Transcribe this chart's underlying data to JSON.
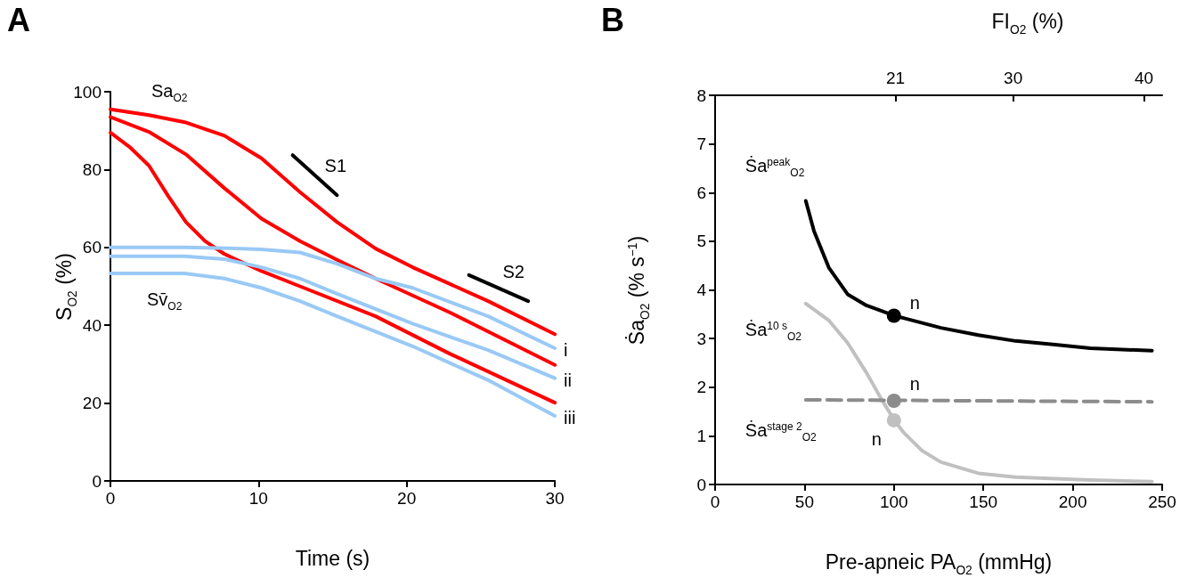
{
  "chart_data": [
    {
      "type": "line",
      "title": "A",
      "xlabel": "Time (s)",
      "ylabel": "S$_{O2}$ (%)",
      "xlim": [
        0,
        30
      ],
      "xticks": [
        0,
        10,
        20,
        30
      ],
      "ylim": [
        0,
        100
      ],
      "yticks": [
        0,
        20,
        40,
        60,
        80,
        100
      ],
      "grid": false,
      "legend": false,
      "marker": "none",
      "line_style": "solid",
      "series": [
        {
          "name": "Sa$_{O2}$",
          "color": "#ff0000",
          "x": [
            0,
            2.6,
            5.1,
            7.7,
            10.2,
            12.8,
            15.3,
            17.9,
            20.4,
            25.5,
            30
          ],
          "values": [
            95.5,
            94,
            92.1,
            88.7,
            82.9,
            74.2,
            66.5,
            59.7,
            54.9,
            46.2,
            37.7
          ]
        },
        {
          "color": "#ff0000",
          "x": [
            0,
            2.6,
            5.1,
            7.7,
            10.2,
            12.8,
            15.3,
            17.9,
            22.9,
            30
          ],
          "values": [
            93.5,
            89.7,
            83.9,
            75.2,
            67.4,
            61.6,
            56.8,
            52,
            43.3,
            29.8
          ]
        },
        {
          "color": "#ff0000",
          "x": [
            0,
            1.3,
            2.6,
            3.9,
            5.1,
            6.4,
            7.7,
            10.2,
            12.8,
            17.9,
            22.9,
            30
          ],
          "values": [
            89.5,
            85.8,
            81,
            73.2,
            66.5,
            61.6,
            58.3,
            53.9,
            50,
            42.3,
            32.7,
            20.1
          ]
        },
        {
          "color": "#99c9f5",
          "x": [
            0,
            5,
            8,
            10.2,
            12.8,
            15.3,
            17.9,
            20.4,
            25.5,
            30
          ],
          "values": [
            60,
            60,
            59.8,
            59.5,
            58.7,
            55.8,
            52,
            49.6,
            42.3,
            34.1
          ]
        },
        {
          "color": "#99c9f5",
          "x": [
            0,
            5,
            7.7,
            10.2,
            12.8,
            15.3,
            20.4,
            25.5,
            30
          ],
          "values": [
            57.7,
            57.7,
            57,
            54.9,
            52,
            48.1,
            40.4,
            33.6,
            26.4
          ]
        },
        {
          "name": "Sv̄$_{O2}$",
          "color": "#99c9f5",
          "x": [
            0,
            5,
            7.7,
            10.2,
            12.8,
            15.3,
            20.4,
            25.5,
            30
          ],
          "values": [
            53.3,
            53.3,
            52,
            49.6,
            46.2,
            42.3,
            34.6,
            25.9,
            16.7
          ]
        },
        {
          "name": "S1",
          "color": "#000000",
          "x": [
            12.3,
            15.3
          ],
          "values": [
            83.7,
            73.4
          ]
        },
        {
          "name": "S2",
          "color": "#000000",
          "x": [
            24.2,
            28.2
          ],
          "values": [
            52.9,
            46.2
          ]
        }
      ],
      "annotations": [
        "i",
        "ii",
        "iii"
      ]
    },
    {
      "type": "line",
      "title": "B",
      "xlabel": "Pre-apneic PA$_{O2}$ (mmHg)",
      "ylabel": "Ṡa$_{O2}$ (% s$^{−1}$)",
      "x2label": "FI$_{O2}$ (%)",
      "xlim": [
        0,
        250
      ],
      "xticks": [
        0,
        50,
        100,
        150,
        200,
        250
      ],
      "ylim": [
        0,
        8
      ],
      "yticks": [
        0,
        1,
        2,
        3,
        4,
        5,
        6,
        7,
        8
      ],
      "x2lim": [
        7.2,
        41.4
      ],
      "x2ticks": [
        21,
        30,
        40
      ],
      "grid": false,
      "legend": false,
      "marker": "none",
      "line_style": "solid",
      "series": [
        {
          "name": "Ṡa$^{peak}$$_{O2}$",
          "color": "#000000",
          "x": [
            50.7,
            55.3,
            63.7,
            74.1,
            84.6,
            100.2,
            126.3,
            147.2,
            168,
            189,
            209.8,
            244.3
          ],
          "values": [
            5.83,
            5.21,
            4.45,
            3.91,
            3.68,
            3.47,
            3.22,
            3.07,
            2.95,
            2.88,
            2.8,
            2.75
          ]
        },
        {
          "name": "Ṡa$^{10 s}$$_{O2}$",
          "color": "#c0c0c0",
          "x": [
            50.7,
            63.7,
            74.1,
            84.6,
            92.9,
            100.2,
            105.4,
            115.9,
            126.3,
            147.2,
            168,
            209.8,
            244.3
          ],
          "values": [
            3.72,
            3.37,
            2.91,
            2.3,
            1.76,
            1.32,
            1.07,
            0.69,
            0.46,
            0.23,
            0.15,
            0.09,
            0.06
          ]
        },
        {
          "name": "Ṡa$^{stage 2}$$_{O2}$",
          "color": "#8c8c8c",
          "line_style": "dashed",
          "x": [
            50.7,
            100,
            244.3
          ],
          "values": [
            1.74,
            1.73,
            1.7
          ]
        },
        {
          "name": "n",
          "type": "scatter",
          "marker": "circle",
          "color": "#000000",
          "x": [
            100
          ],
          "values": [
            3.47
          ]
        },
        {
          "name": "n",
          "type": "scatter",
          "marker": "circle",
          "color": "#8c8c8c",
          "x": [
            100
          ],
          "values": [
            1.72
          ]
        },
        {
          "name": "n",
          "type": "scatter",
          "marker": "circle",
          "color": "#c0c0c0",
          "x": [
            100
          ],
          "values": [
            1.32
          ]
        }
      ]
    }
  ]
}
